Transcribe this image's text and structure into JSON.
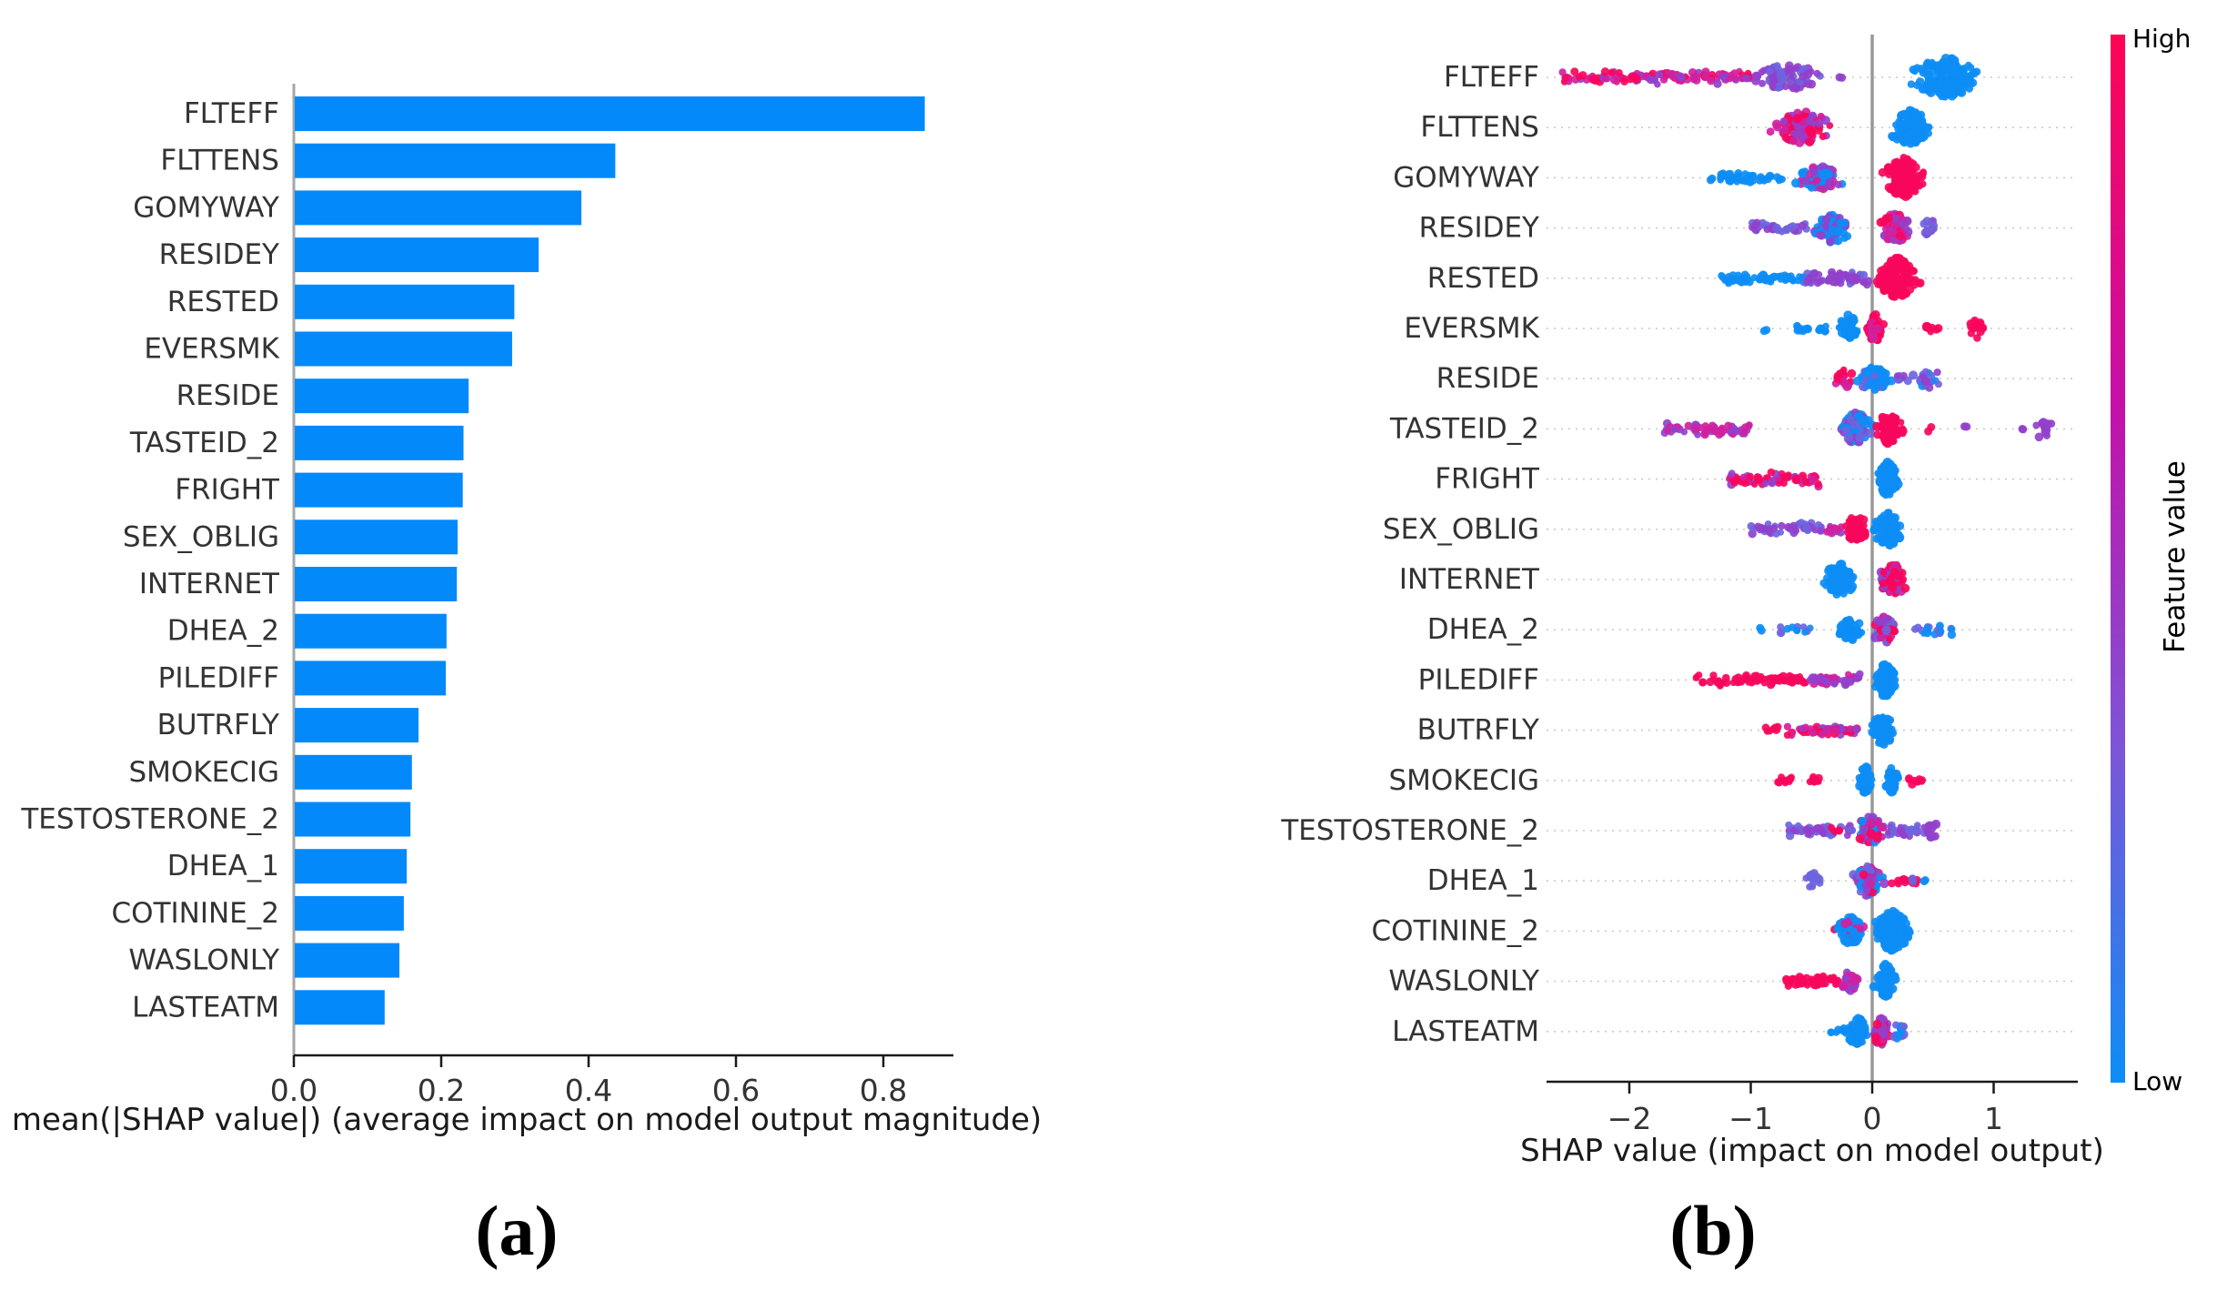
{
  "captions": {
    "a": "(a)",
    "b": "(b)"
  },
  "palette": {
    "red": "#f7075c",
    "magenta": "#d0219e",
    "purple": "#9340cc",
    "violet": "#6e64de",
    "blue": "#0d8df5",
    "bar_blue": "#0389fa",
    "axis_dark": "#1a1a1a",
    "label_gray": "#333333",
    "spine_gray": "#a6a6a6",
    "zero_line_gray": "#999999",
    "grid_dot_gray": "#c9c9c9",
    "colorbar_top": "#ff0454",
    "colorbar_mid1": "#c50fa8",
    "colorbar_mid2": "#7d55d8",
    "colorbar_bottom": "#0d8df5"
  },
  "chart_data": [
    {
      "type": "bar",
      "orientation": "horizontal",
      "categories": [
        "FLTEFF",
        "FLTTENS",
        "GOMYWAY",
        "RESIDEY",
        "RESTED",
        "EVERSMK",
        "RESIDE",
        "TASTEID_2",
        "FRIGHT",
        "SEX_OBLIG",
        "INTERNET",
        "DHEA_2",
        "PILEDIFF",
        "BUTRFLY",
        "SMOKECIG",
        "TESTOSTERONE_2",
        "DHEA_1",
        "COTININE_2",
        "WASLONLY",
        "LASTEATM"
      ],
      "values": [
        0.855,
        0.435,
        0.389,
        0.331,
        0.298,
        0.295,
        0.236,
        0.229,
        0.228,
        0.221,
        0.22,
        0.206,
        0.205,
        0.168,
        0.159,
        0.157,
        0.152,
        0.148,
        0.142,
        0.122
      ],
      "xlabel": "mean(|SHAP value|) (average impact on model output magnitude)",
      "xticks": [
        0.0,
        0.2,
        0.4,
        0.6,
        0.8
      ],
      "xtick_labels": [
        "0.0",
        "0.2",
        "0.4",
        "0.6",
        "0.8"
      ],
      "xlim": [
        0,
        0.895
      ],
      "grid": false,
      "bar_color": "#0389fa"
    },
    {
      "type": "scatter",
      "subtype": "shap-beeswarm",
      "xlabel": "SHAP value (impact on model output)",
      "xticks": [
        -2,
        -1,
        0,
        1
      ],
      "xtick_labels": [
        "−2",
        "−1",
        "0",
        "1"
      ],
      "xlim": [
        -2.68,
        1.69
      ],
      "grid": "dotted-rows",
      "colorbar": {
        "high": "High",
        "low": "Low",
        "label": "Feature value"
      },
      "rows": [
        {
          "feature": "FLTEFF",
          "clusters": [
            [
              "s",
              -2.55,
              -1.0,
              8,
              120,
              [
                "red",
                "red",
                "magenta",
                "magenta",
                "purple"
              ]
            ],
            [
              "v",
              -1.05,
              -0.38,
              13,
              80,
              [
                "purple",
                "purple",
                "violet"
              ]
            ],
            [
              "d",
              -0.25,
              -0.25,
              4,
              2,
              [
                "purple"
              ]
            ],
            [
              "v",
              0.25,
              0.95,
              21,
              170,
              [
                "blue"
              ]
            ]
          ]
        },
        {
          "feature": "FLTTENS",
          "clusters": [
            [
              "v",
              -0.88,
              -0.25,
              16,
              100,
              [
                "red",
                "red",
                "magenta",
                "purple"
              ]
            ],
            [
              "v",
              0.08,
              0.55,
              17,
              100,
              [
                "blue"
              ]
            ]
          ]
        },
        {
          "feature": "GOMYWAY",
          "clusters": [
            [
              "d",
              -1.32,
              -1.32,
              4,
              2,
              [
                "blue"
              ]
            ],
            [
              "s",
              -1.26,
              -0.72,
              6,
              45,
              [
                "blue"
              ]
            ],
            [
              "v",
              -0.72,
              -0.16,
              11,
              75,
              [
                "blue",
                "blue",
                "purple",
                "magenta"
              ]
            ],
            [
              "v",
              0.05,
              0.47,
              20,
              140,
              [
                "red"
              ]
            ]
          ]
        },
        {
          "feature": "RESIDEY",
          "clusters": [
            [
              "s",
              -1.0,
              -0.52,
              7,
              35,
              [
                "purple",
                "violet"
              ]
            ],
            [
              "v",
              -0.52,
              -0.13,
              14,
              75,
              [
                "blue",
                "blue",
                "blue",
                "purple"
              ]
            ],
            [
              "v",
              0.04,
              0.34,
              15,
              75,
              [
                "red",
                "magenta",
                "purple"
              ]
            ],
            [
              "v",
              0.38,
              0.56,
              7,
              14,
              [
                "purple",
                "violet"
              ]
            ]
          ]
        },
        {
          "feature": "RESTED",
          "clusters": [
            [
              "s",
              -1.26,
              -0.55,
              6.5,
              60,
              [
                "blue"
              ]
            ],
            [
              "s",
              -0.55,
              -0.02,
              9,
              70,
              [
                "violet",
                "purple",
                "purple"
              ]
            ],
            [
              "v",
              0.0,
              0.42,
              21,
              150,
              [
                "red"
              ]
            ]
          ]
        },
        {
          "feature": "EVERSMK",
          "clusters": [
            [
              "d",
              -0.88,
              -0.88,
              4,
              2,
              [
                "blue"
              ]
            ],
            [
              "s",
              -0.62,
              -0.52,
              5,
              9,
              [
                "blue"
              ]
            ],
            [
              "s",
              -0.45,
              -0.38,
              5,
              7,
              [
                "blue"
              ]
            ],
            [
              "v",
              -0.29,
              -0.09,
              13,
              50,
              [
                "blue"
              ]
            ],
            [
              "v",
              -0.07,
              0.12,
              13,
              50,
              [
                "red",
                "red",
                "red",
                "magenta"
              ]
            ],
            [
              "s",
              0.44,
              0.55,
              5,
              8,
              [
                "red"
              ]
            ],
            [
              "v",
              0.77,
              0.96,
              8,
              16,
              [
                "red"
              ]
            ]
          ]
        },
        {
          "feature": "RESIDE",
          "clusters": [
            [
              "v",
              -0.33,
              -0.15,
              9,
              22,
              [
                "red",
                "magenta"
              ]
            ],
            [
              "v",
              -0.16,
              0.18,
              11,
              75,
              [
                "blue",
                "blue",
                "blue",
                "violet"
              ]
            ],
            [
              "s",
              0.19,
              0.3,
              5,
              8,
              [
                "violet",
                "purple"
              ]
            ],
            [
              "v",
              0.31,
              0.62,
              8,
              22,
              [
                "purple",
                "blue",
                "violet"
              ]
            ]
          ]
        },
        {
          "feature": "TASTEID_2",
          "clusters": [
            [
              "s",
              -1.72,
              -1.0,
              7.5,
              55,
              [
                "purple",
                "magenta"
              ]
            ],
            [
              "v",
              -0.28,
              0.02,
              16,
              85,
              [
                "blue",
                "purple",
                "violet",
                "blue"
              ]
            ],
            [
              "v",
              0.0,
              0.27,
              15,
              75,
              [
                "red"
              ]
            ],
            [
              "d",
              0.48,
              0.48,
              4,
              2,
              [
                "red"
              ]
            ],
            [
              "d",
              0.77,
              0.77,
              4,
              2,
              [
                "purple"
              ]
            ],
            [
              "d",
              1.22,
              1.22,
              4,
              2,
              [
                "purple"
              ]
            ],
            [
              "v",
              1.29,
              1.51,
              8,
              16,
              [
                "purple"
              ]
            ]
          ]
        },
        {
          "feature": "FRIGHT",
          "clusters": [
            [
              "s",
              -1.2,
              -0.44,
              8,
              70,
              [
                "red",
                "red",
                "magenta",
                "purple"
              ]
            ],
            [
              "v",
              0.01,
              0.24,
              17,
              100,
              [
                "blue"
              ]
            ]
          ]
        },
        {
          "feature": "SEX_OBLIG",
          "clusters": [
            [
              "s",
              -1.02,
              -0.4,
              7.5,
              48,
              [
                "purple",
                "violet"
              ]
            ],
            [
              "s",
              -0.4,
              -0.24,
              6,
              14,
              [
                "magenta",
                "purple"
              ]
            ],
            [
              "v",
              -0.27,
              0.0,
              13,
              60,
              [
                "red"
              ]
            ],
            [
              "v",
              -0.01,
              0.28,
              17,
              90,
              [
                "blue"
              ]
            ]
          ]
        },
        {
          "feature": "INTERNET",
          "clusters": [
            [
              "v",
              -0.43,
              -0.1,
              16,
              100,
              [
                "blue"
              ]
            ],
            [
              "v",
              0.03,
              0.33,
              15,
              80,
              [
                "red",
                "red",
                "red",
                "purple",
                "magenta"
              ]
            ]
          ]
        },
        {
          "feature": "DHEA_2",
          "clusters": [
            [
              "d",
              -0.91,
              -0.91,
              4,
              2,
              [
                "blue"
              ]
            ],
            [
              "s",
              -0.78,
              -0.42,
              5,
              12,
              [
                "blue",
                "violet"
              ]
            ],
            [
              "v",
              -0.31,
              -0.05,
              10,
              45,
              [
                "blue"
              ]
            ],
            [
              "v",
              -0.03,
              0.22,
              13,
              60,
              [
                "purple",
                "magenta",
                "red",
                "violet"
              ]
            ],
            [
              "s",
              0.34,
              0.66,
              6,
              20,
              [
                "blue",
                "violet"
              ]
            ]
          ]
        },
        {
          "feature": "PILEDIFF",
          "clusters": [
            [
              "s",
              -1.47,
              -0.52,
              7,
              75,
              [
                "red"
              ]
            ],
            [
              "s",
              -0.52,
              -0.07,
              8,
              45,
              [
                "purple",
                "magenta"
              ]
            ],
            [
              "v",
              0.0,
              0.22,
              17,
              95,
              [
                "blue"
              ]
            ]
          ]
        },
        {
          "feature": "BUTRFLY",
          "clusters": [
            [
              "s",
              -0.89,
              -0.77,
              5,
              7,
              [
                "red"
              ]
            ],
            [
              "s",
              -0.7,
              -0.12,
              7.5,
              50,
              [
                "red",
                "magenta",
                "purple"
              ]
            ],
            [
              "v",
              -0.03,
              0.2,
              15,
              75,
              [
                "blue"
              ]
            ]
          ]
        },
        {
          "feature": "SMOKECIG",
          "clusters": [
            [
              "s",
              -0.78,
              -0.66,
              5,
              10,
              [
                "red"
              ]
            ],
            [
              "s",
              -0.55,
              -0.44,
              5,
              10,
              [
                "red"
              ]
            ],
            [
              "v",
              -0.13,
              0.02,
              14,
              55,
              [
                "blue"
              ]
            ],
            [
              "v",
              0.09,
              0.23,
              12,
              38,
              [
                "blue"
              ]
            ],
            [
              "s",
              0.3,
              0.42,
              5,
              10,
              [
                "red"
              ]
            ]
          ]
        },
        {
          "feature": "TESTOSTERONE_2",
          "clusters": [
            [
              "s",
              -0.7,
              -0.15,
              7,
              45,
              [
                "violet",
                "purple"
              ]
            ],
            [
              "s",
              -0.34,
              -0.26,
              5,
              6,
              [
                "red"
              ]
            ],
            [
              "v",
              -0.15,
              0.12,
              15,
              75,
              [
                "blue",
                "magenta",
                "red",
                "purple",
                "violet"
              ]
            ],
            [
              "s",
              0.12,
              0.44,
              7,
              30,
              [
                "purple",
                "violet"
              ]
            ],
            [
              "v",
              0.44,
              0.56,
              7,
              12,
              [
                "purple"
              ]
            ]
          ]
        },
        {
          "feature": "DHEA_1",
          "clusters": [
            [
              "v",
              -0.56,
              -0.42,
              8,
              16,
              [
                "violet"
              ]
            ],
            [
              "v",
              -0.18,
              0.12,
              15,
              80,
              [
                "magenta",
                "blue",
                "purple",
                "red",
                "violet"
              ]
            ],
            [
              "s",
              0.15,
              0.38,
              5,
              14,
              [
                "red"
              ]
            ],
            [
              "d",
              0.33,
              0.33,
              4,
              2,
              [
                "violet"
              ]
            ],
            [
              "d",
              0.45,
              0.45,
              4,
              2,
              [
                "blue"
              ]
            ]
          ]
        },
        {
          "feature": "COTININE_2",
          "clusters": [
            [
              "d",
              -0.31,
              -0.31,
              4,
              2,
              [
                "red"
              ]
            ],
            [
              "v",
              -0.32,
              -0.04,
              14,
              75,
              [
                "blue",
                "blue",
                "blue",
                "blue",
                "magenta"
              ]
            ],
            [
              "v",
              -0.02,
              0.35,
              20,
              160,
              [
                "blue"
              ]
            ]
          ]
        },
        {
          "feature": "WASLONLY",
          "clusters": [
            [
              "s",
              -0.71,
              -0.28,
              6.5,
              50,
              [
                "red"
              ]
            ],
            [
              "v",
              -0.28,
              -0.1,
              9,
              28,
              [
                "purple",
                "magenta"
              ]
            ],
            [
              "v",
              0.0,
              0.21,
              17,
              90,
              [
                "blue"
              ]
            ]
          ]
        },
        {
          "feature": "LASTEATM",
          "clusters": [
            [
              "s",
              -0.34,
              -0.21,
              5,
              10,
              [
                "blue"
              ]
            ],
            [
              "v",
              -0.22,
              -0.02,
              14,
              60,
              [
                "blue"
              ]
            ],
            [
              "v",
              -0.03,
              0.16,
              14,
              60,
              [
                "magenta",
                "red",
                "purple"
              ]
            ],
            [
              "v",
              0.16,
              0.29,
              8,
              14,
              [
                "violet",
                "blue"
              ]
            ]
          ]
        }
      ]
    }
  ]
}
